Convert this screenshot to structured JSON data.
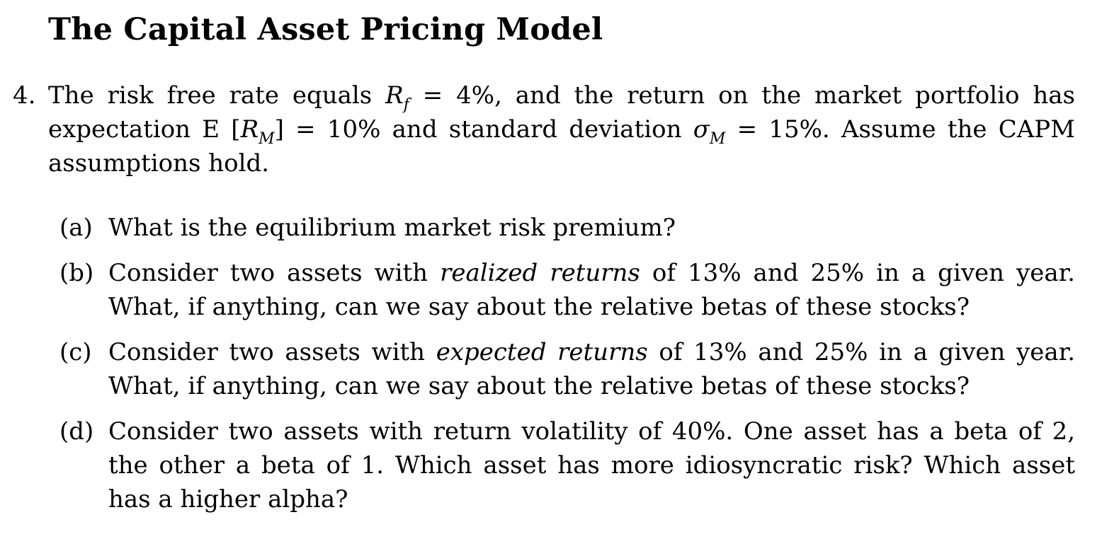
{
  "section_title": "The Capital Asset Pricing Model",
  "problem": {
    "number": "4.",
    "intro_1": "The risk free rate equals ",
    "rf_symbol": "R",
    "rf_sub": "f",
    "intro_2": " = 4%, and the return on the market portfolio has expectation E [",
    "rm_symbol": "R",
    "rm_sub": "M",
    "intro_3": "] = 10% and standard deviation ",
    "sigma_symbol": "σ",
    "sigma_sub": "M",
    "intro_4": " = 15%.  Assume the CAPM assumptions hold."
  },
  "parts": {
    "a": {
      "label": "(a)",
      "text": "What is the equilibrium market risk premium?"
    },
    "b": {
      "label": "(b)",
      "text_1": "Consider two assets with ",
      "emph": "realized returns",
      "text_2": " of 13% and 25% in a given year. What, if anything, can we say about the relative betas of these stocks?"
    },
    "c": {
      "label": "(c)",
      "text_1": "Consider two assets with ",
      "emph": "expected returns",
      "text_2": " of 13% and 25% in a given year. What, if anything, can we say about the relative betas of these stocks?"
    },
    "d": {
      "label": "(d)",
      "text": "Consider two assets with return volatility of 40%. One asset has a beta of 2, the other a beta of 1.  Which asset has more idiosyncratic risk?  Which asset has a higher alpha?"
    }
  }
}
